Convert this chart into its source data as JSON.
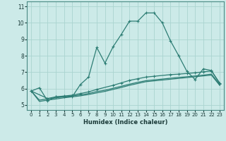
{
  "xlabel": "Humidex (Indice chaleur)",
  "bg_color": "#cceae8",
  "grid_color": "#aad4d0",
  "line_color": "#2d7d74",
  "xlim": [
    -0.5,
    23.5
  ],
  "ylim": [
    4.7,
    11.3
  ],
  "yticks": [
    5,
    6,
    7,
    8,
    9,
    10,
    11
  ],
  "xticks": [
    0,
    1,
    2,
    3,
    4,
    5,
    6,
    7,
    8,
    9,
    10,
    11,
    12,
    13,
    14,
    15,
    16,
    17,
    18,
    19,
    20,
    21,
    22,
    23
  ],
  "series1_x": [
    0,
    1,
    2,
    3,
    4,
    5,
    6,
    7,
    8,
    9,
    10,
    11,
    12,
    13,
    14,
    15,
    16,
    17,
    18,
    19,
    20,
    21,
    22,
    23
  ],
  "series1_y": [
    5.85,
    6.05,
    5.25,
    5.5,
    5.5,
    5.5,
    6.25,
    6.7,
    8.5,
    7.55,
    8.55,
    9.3,
    10.1,
    10.1,
    10.6,
    10.6,
    10.0,
    8.9,
    8.0,
    7.05,
    6.55,
    7.2,
    7.1,
    6.3
  ],
  "series2_x": [
    0,
    2,
    3,
    4,
    5,
    6,
    7,
    8,
    10,
    11,
    12,
    13,
    14,
    15,
    17,
    18,
    19,
    20,
    21,
    22,
    23
  ],
  "series2_y": [
    5.85,
    5.4,
    5.5,
    5.55,
    5.6,
    5.7,
    5.8,
    5.95,
    6.2,
    6.35,
    6.5,
    6.6,
    6.7,
    6.75,
    6.85,
    6.88,
    6.92,
    6.96,
    7.02,
    7.07,
    6.35
  ],
  "series3_x": [
    0,
    1,
    2,
    3,
    4,
    5,
    6,
    7,
    8,
    9,
    10,
    11,
    12,
    13,
    14,
    15,
    16,
    17,
    18,
    19,
    20,
    21,
    22,
    23
  ],
  "series3_y": [
    5.85,
    5.3,
    5.38,
    5.44,
    5.5,
    5.55,
    5.62,
    5.7,
    5.82,
    5.9,
    6.02,
    6.14,
    6.27,
    6.38,
    6.48,
    6.53,
    6.58,
    6.63,
    6.68,
    6.72,
    6.77,
    6.82,
    6.88,
    6.25
  ],
  "series4_x": [
    0,
    1,
    2,
    3,
    4,
    5,
    6,
    7,
    8,
    9,
    10,
    11,
    12,
    13,
    14,
    15,
    16,
    17,
    18,
    19,
    20,
    21,
    22,
    23
  ],
  "series4_y": [
    5.85,
    5.22,
    5.3,
    5.37,
    5.44,
    5.5,
    5.56,
    5.64,
    5.74,
    5.83,
    5.95,
    6.07,
    6.2,
    6.31,
    6.42,
    6.47,
    6.52,
    6.57,
    6.62,
    6.67,
    6.72,
    6.77,
    6.82,
    6.2
  ]
}
